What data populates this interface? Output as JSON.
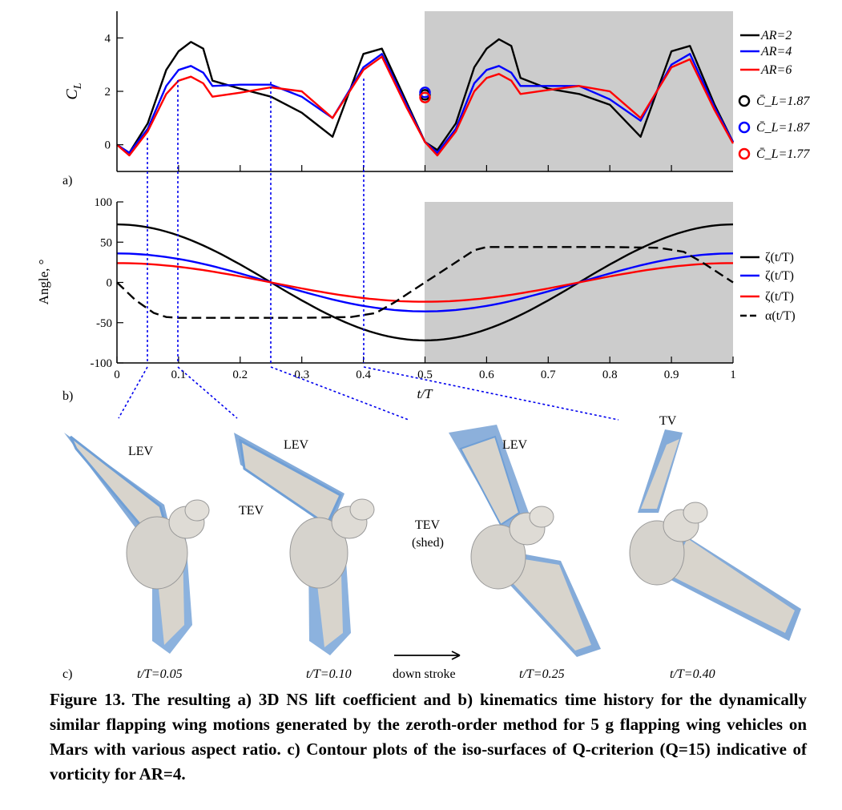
{
  "panel_labels": {
    "a": "a)",
    "b": "b)",
    "c": "c)"
  },
  "colors": {
    "ar2": "#000000",
    "ar4": "#0000ff",
    "ar6": "#ff0000",
    "shade": "#cccccc",
    "guide": "#0000ee"
  },
  "chart_data": [
    {
      "type": "line",
      "ylabel": "C_L",
      "xlim": [
        0,
        1
      ],
      "ylim": [
        -1,
        5
      ],
      "yticks": [
        0,
        2,
        4
      ],
      "shaded_region": [
        0.5,
        1
      ],
      "series": [
        {
          "name": "AR=2",
          "color": "#000000",
          "x": [
            0,
            0.02,
            0.05,
            0.08,
            0.1,
            0.12,
            0.14,
            0.155,
            0.2,
            0.25,
            0.3,
            0.35,
            0.4,
            0.43,
            0.47,
            0.5,
            0.52,
            0.55,
            0.58,
            0.6,
            0.62,
            0.64,
            0.655,
            0.7,
            0.75,
            0.8,
            0.85,
            0.9,
            0.93,
            0.97,
            1.0
          ],
          "y": [
            0,
            -0.3,
            0.8,
            2.8,
            3.5,
            3.85,
            3.6,
            2.4,
            2.1,
            1.8,
            1.2,
            0.3,
            3.4,
            3.6,
            1.6,
            0.1,
            -0.2,
            0.8,
            2.9,
            3.6,
            3.95,
            3.7,
            2.5,
            2.1,
            1.9,
            1.5,
            0.3,
            3.5,
            3.7,
            1.5,
            0.1
          ]
        },
        {
          "name": "AR=4",
          "color": "#0000ff",
          "x": [
            0,
            0.02,
            0.05,
            0.08,
            0.1,
            0.12,
            0.14,
            0.155,
            0.2,
            0.25,
            0.3,
            0.35,
            0.4,
            0.43,
            0.47,
            0.5,
            0.52,
            0.55,
            0.58,
            0.6,
            0.62,
            0.64,
            0.655,
            0.7,
            0.75,
            0.8,
            0.85,
            0.9,
            0.93,
            0.97,
            1.0
          ],
          "y": [
            0,
            -0.3,
            0.6,
            2.2,
            2.8,
            2.95,
            2.7,
            2.2,
            2.25,
            2.25,
            1.8,
            1.0,
            2.9,
            3.4,
            1.5,
            0.1,
            -0.3,
            0.6,
            2.3,
            2.8,
            2.95,
            2.7,
            2.2,
            2.2,
            2.2,
            1.7,
            0.9,
            3.0,
            3.4,
            1.4,
            0.1
          ]
        },
        {
          "name": "AR=6",
          "color": "#ff0000",
          "x": [
            0,
            0.02,
            0.05,
            0.08,
            0.1,
            0.12,
            0.14,
            0.155,
            0.2,
            0.25,
            0.3,
            0.35,
            0.4,
            0.43,
            0.47,
            0.5,
            0.52,
            0.55,
            0.58,
            0.6,
            0.62,
            0.64,
            0.655,
            0.7,
            0.75,
            0.8,
            0.85,
            0.9,
            0.93,
            0.97,
            1.0
          ],
          "y": [
            0,
            -0.4,
            0.5,
            1.9,
            2.4,
            2.55,
            2.3,
            1.8,
            1.95,
            2.15,
            2.0,
            1.0,
            2.8,
            3.3,
            1.4,
            0.1,
            -0.4,
            0.5,
            2.0,
            2.5,
            2.65,
            2.4,
            1.9,
            2.05,
            2.2,
            2.0,
            1.0,
            2.9,
            3.2,
            1.3,
            0.05
          ]
        }
      ],
      "mean_markers": [
        {
          "label": "C̄_L=1.87",
          "color": "#000000",
          "x": 0.5,
          "y": 1.87
        },
        {
          "label": "C̄_L=1.87",
          "color": "#0000ff",
          "x": 0.5,
          "y": 1.87
        },
        {
          "label": "C̄_L=1.77",
          "color": "#ff0000",
          "x": 0.5,
          "y": 1.77
        }
      ]
    },
    {
      "type": "line",
      "xlabel": "t/T",
      "ylabel": "Angle, °",
      "xlim": [
        0,
        1
      ],
      "ylim": [
        -100,
        100
      ],
      "xticks": [
        0,
        0.1,
        0.2,
        0.3,
        0.4,
        0.5,
        0.6,
        0.7,
        0.8,
        0.9,
        1
      ],
      "yticks": [
        -100,
        -50,
        0,
        50,
        100
      ],
      "shaded_region": [
        0.5,
        1
      ],
      "series": [
        {
          "name": "ζ(t/T)",
          "color": "#000000",
          "amplitude": 72
        },
        {
          "name": "ζ(t/T)",
          "color": "#0000ff",
          "amplitude": 36
        },
        {
          "name": "ζ(t/T)",
          "color": "#ff0000",
          "amplitude": 24
        },
        {
          "name": "α(t/T)",
          "color": "#000000",
          "dashed": true,
          "x": [
            0,
            0.03,
            0.06,
            0.08,
            0.1,
            0.2,
            0.3,
            0.38,
            0.42,
            0.45,
            0.5,
            0.55,
            0.58,
            0.6,
            0.7,
            0.8,
            0.88,
            0.92,
            0.95,
            1.0
          ],
          "y": [
            0,
            -22,
            -38,
            -43,
            -44,
            -44,
            -44,
            -43,
            -38,
            -25,
            0,
            25,
            40,
            44,
            44,
            44,
            43,
            38,
            25,
            0
          ]
        }
      ]
    }
  ],
  "legend_a": [
    "AR=2",
    "AR=4",
    "AR=6",
    "C̄_L=1.87",
    "C̄_L=1.87",
    "C̄_L=1.77"
  ],
  "snapshots": [
    {
      "time": "t/T=0.05",
      "labels": [
        "LEV"
      ]
    },
    {
      "time": "t/T=0.10",
      "labels": [
        "LEV",
        "TEV"
      ]
    },
    {
      "time": "t/T=0.25",
      "labels": [
        "LEV",
        "TEV",
        "(shed)"
      ]
    },
    {
      "time": "t/T=0.40",
      "labels": [
        "TV"
      ]
    }
  ],
  "arrow_label": "down stroke",
  "caption": "Figure 13. The resulting a) 3D NS lift coefficient and b) kinematics time history for the dynamically similar flapping wing motions generated by the zeroth-order method for 5 g flapping wing vehicles on Mars with various aspect ratio. c) Contour plots of the iso-surfaces of Q-criterion (Q=15) indicative of vorticity for AR=4."
}
